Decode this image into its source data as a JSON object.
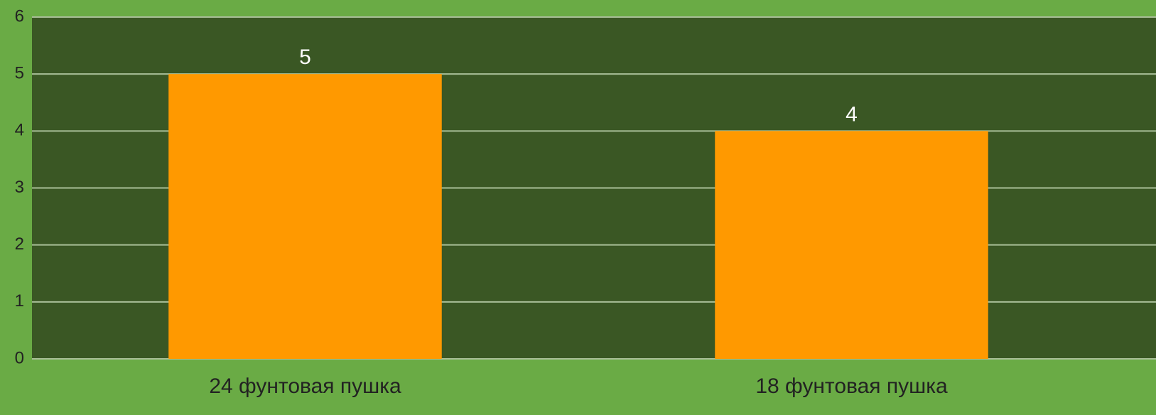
{
  "chart_data": {
    "type": "bar",
    "categories": [
      "24 фунтовая пушка",
      "18 фунтовая пушка"
    ],
    "values": [
      5,
      4
    ],
    "color": "#ff9900",
    "ylim": [
      0,
      6
    ],
    "yticks": [
      0,
      1,
      2,
      3,
      4,
      5,
      6
    ],
    "grid": true
  }
}
